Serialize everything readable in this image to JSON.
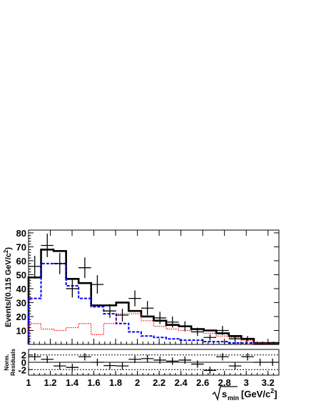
{
  "chart_data": [
    {
      "type": "histogram",
      "ylabel": "Events/(0.115 GeV/c",
      "ylabel_sup": "2",
      "ylabel_end": ")",
      "xlim": [
        1.0,
        3.3
      ],
      "ylim": [
        0,
        82
      ],
      "bin_edges": [
        1.0,
        1.115,
        1.23,
        1.345,
        1.46,
        1.575,
        1.69,
        1.805,
        1.92,
        2.035,
        2.15,
        2.265,
        2.38,
        2.495,
        2.61,
        2.725,
        2.84,
        2.955,
        3.07,
        3.185,
        3.3
      ],
      "x_ticks": [
        "1",
        "1.2",
        "1.4",
        "1.6",
        "1.8",
        "2",
        "2.2",
        "2.4",
        "2.6",
        "2.8",
        "3",
        "3.2"
      ],
      "y_ticks": [
        "10",
        "20",
        "30",
        "40",
        "50",
        "60",
        "70",
        "80"
      ],
      "series": [
        {
          "style": "total-fit",
          "color": "#000000",
          "values": [
            48,
            68,
            67,
            47,
            44,
            28,
            28,
            30,
            24,
            20,
            17,
            14,
            13,
            11,
            10,
            8,
            6,
            4,
            1,
            1
          ]
        },
        {
          "style": "blue-dashed-component",
          "color": "#0000ff",
          "values": [
            33,
            58,
            58,
            42,
            33,
            27,
            22,
            15,
            9,
            6,
            5,
            4,
            3,
            3,
            2,
            2,
            1,
            1,
            0.5,
            0.5
          ]
        },
        {
          "style": "red-dotted-component",
          "color": "#ff0000",
          "values": [
            15,
            11,
            10,
            12,
            15,
            7,
            15,
            22,
            22,
            17,
            13,
            11,
            10,
            9,
            8,
            6,
            5,
            3,
            1,
            0.5
          ]
        },
        {
          "style": "data-points",
          "color": "#000000",
          "x": [
            1.057,
            1.172,
            1.287,
            1.402,
            1.517,
            1.632,
            1.747,
            1.862,
            1.977,
            2.092,
            2.207,
            2.322,
            2.437,
            2.552,
            2.667,
            2.782,
            2.897,
            3.012,
            3.127,
            3.242
          ],
          "y": [
            56,
            71,
            58,
            40,
            55,
            43,
            24,
            21,
            33,
            26,
            19,
            16,
            13,
            9,
            5,
            10,
            4,
            4,
            0,
            0
          ],
          "yerr": [
            7.5,
            8.4,
            7.6,
            6.3,
            7.4,
            6.6,
            4.9,
            4.6,
            5.7,
            5.1,
            4.4,
            4.0,
            3.6,
            3.0,
            2.2,
            3.2,
            2.0,
            2.0,
            0,
            0
          ]
        }
      ]
    },
    {
      "type": "scatter",
      "ylabel": [
        "Norm.",
        "Residuals"
      ],
      "xlabel_pre": "",
      "xlabel_sqrt": "s",
      "xlabel_sub": "min",
      "xlabel_unit": "[GeV/c",
      "xlabel_unit_sup": "2",
      "xlabel_unit_end": "]",
      "ylim": [
        -3.5,
        3.5
      ],
      "y_ticks": [
        "2",
        "0",
        "-2"
      ],
      "dashed_levels": [
        -2,
        2
      ],
      "x": [
        1.057,
        1.172,
        1.287,
        1.402,
        1.517,
        1.632,
        1.747,
        1.862,
        1.977,
        2.092,
        2.207,
        2.322,
        2.437,
        2.552,
        2.667,
        2.782,
        2.897,
        3.012,
        3.127,
        3.242
      ],
      "y": [
        1.5,
        0.8,
        -1.0,
        -1.4,
        1.5,
        0.0,
        -0.9,
        -1.0,
        0.8,
        1.0,
        0.6,
        0.3,
        0.6,
        -0.5,
        -2.2,
        1.5,
        -1.0,
        1.5,
        0.0,
        0.0
      ],
      "yerr": [
        1,
        1,
        1,
        1,
        1,
        1,
        1,
        1,
        1,
        1,
        1,
        1,
        1,
        1,
        1,
        1,
        1,
        1,
        1,
        1
      ]
    }
  ]
}
